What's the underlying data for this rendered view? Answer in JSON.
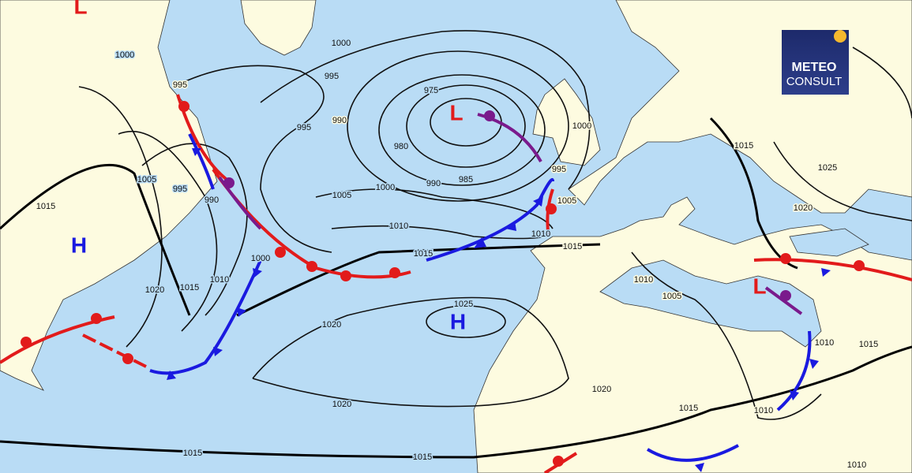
{
  "logo": {
    "line1": "METEO",
    "line2": "CONSULT"
  },
  "centers": [
    "L",
    "H",
    "L",
    "H",
    "L"
  ],
  "isobar_labels": [
    1000,
    1000,
    995,
    995,
    990,
    975,
    980,
    985,
    990,
    1000,
    1005,
    1010,
    1015,
    995,
    1005,
    995,
    990,
    1000,
    1010,
    1015,
    1020,
    1015,
    1020,
    1025,
    1020,
    1020,
    1015,
    1010,
    1005,
    995,
    1000,
    1015,
    1025,
    1020,
    1010,
    1005,
    1015,
    1010,
    1010,
    1015,
    1015,
    1015,
    1010
  ]
}
